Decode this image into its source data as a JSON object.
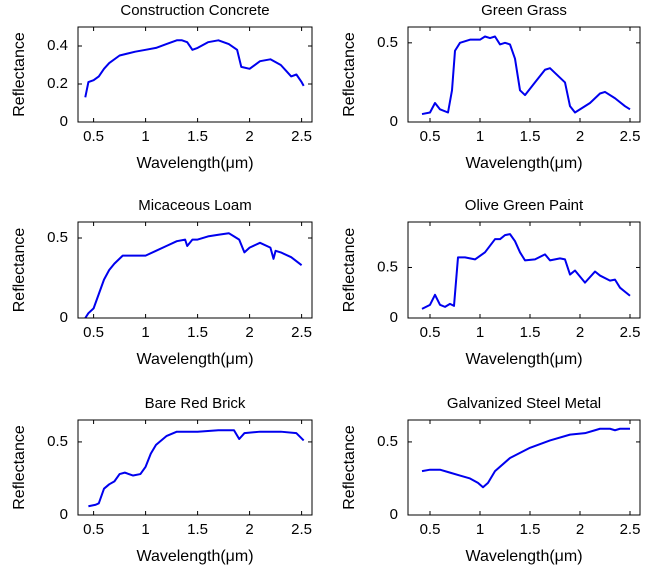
{
  "chart_data": [
    {
      "type": "line",
      "title": "Construction Concrete",
      "xlabel": "Wavelength(μm)",
      "ylabel": "Reflectance",
      "color": "#0000ee",
      "x": [
        0.42,
        0.45,
        0.5,
        0.55,
        0.6,
        0.65,
        0.75,
        0.9,
        1.0,
        1.1,
        1.2,
        1.3,
        1.35,
        1.4,
        1.45,
        1.5,
        1.6,
        1.7,
        1.8,
        1.88,
        1.92,
        2.0,
        2.1,
        2.2,
        2.3,
        2.35,
        2.4,
        2.45,
        2.5,
        2.52
      ],
      "values": [
        0.13,
        0.21,
        0.22,
        0.24,
        0.28,
        0.31,
        0.35,
        0.37,
        0.38,
        0.39,
        0.41,
        0.43,
        0.43,
        0.42,
        0.38,
        0.39,
        0.42,
        0.43,
        0.41,
        0.38,
        0.29,
        0.28,
        0.32,
        0.33,
        0.3,
        0.27,
        0.24,
        0.25,
        0.21,
        0.19
      ],
      "xlim": [
        0.35,
        2.6
      ],
      "ylim": [
        0,
        0.5
      ],
      "xticks": [
        0.5,
        1,
        1.5,
        2,
        2.5
      ],
      "yticks": [
        0,
        0.2,
        0.4
      ]
    },
    {
      "type": "line",
      "title": "Green Grass",
      "xlabel": "Wavelength(μm)",
      "ylabel": "Reflectance",
      "color": "#0000ee",
      "x": [
        0.42,
        0.5,
        0.55,
        0.6,
        0.68,
        0.72,
        0.75,
        0.8,
        0.9,
        1.0,
        1.05,
        1.1,
        1.15,
        1.2,
        1.25,
        1.3,
        1.35,
        1.4,
        1.45,
        1.55,
        1.65,
        1.7,
        1.8,
        1.85,
        1.9,
        1.95,
        2.1,
        2.2,
        2.25,
        2.35,
        2.45,
        2.5
      ],
      "values": [
        0.05,
        0.06,
        0.12,
        0.08,
        0.06,
        0.2,
        0.45,
        0.5,
        0.52,
        0.52,
        0.54,
        0.53,
        0.54,
        0.49,
        0.5,
        0.49,
        0.4,
        0.2,
        0.17,
        0.25,
        0.33,
        0.34,
        0.28,
        0.25,
        0.1,
        0.06,
        0.12,
        0.18,
        0.19,
        0.15,
        0.1,
        0.08
      ],
      "xlim": [
        0.28,
        2.6
      ],
      "ylim": [
        0,
        0.6
      ],
      "xticks": [
        0.5,
        1,
        1.5,
        2,
        2.5
      ],
      "yticks": [
        0,
        0.5
      ]
    },
    {
      "type": "line",
      "title": "Micaceous Loam",
      "xlabel": "Wavelength(μm)",
      "ylabel": "Reflectance",
      "color": "#0000ee",
      "x": [
        0.42,
        0.45,
        0.5,
        0.55,
        0.6,
        0.65,
        0.7,
        0.78,
        0.85,
        1.0,
        1.1,
        1.2,
        1.3,
        1.38,
        1.4,
        1.45,
        1.5,
        1.6,
        1.7,
        1.8,
        1.85,
        1.9,
        1.95,
        2.0,
        2.1,
        2.2,
        2.23,
        2.25,
        2.3,
        2.4,
        2.5
      ],
      "values": [
        0.0,
        0.03,
        0.06,
        0.15,
        0.24,
        0.3,
        0.34,
        0.39,
        0.39,
        0.39,
        0.42,
        0.45,
        0.48,
        0.49,
        0.45,
        0.49,
        0.49,
        0.51,
        0.52,
        0.53,
        0.51,
        0.49,
        0.41,
        0.44,
        0.47,
        0.44,
        0.37,
        0.42,
        0.41,
        0.38,
        0.33
      ],
      "xlim": [
        0.35,
        2.6
      ],
      "ylim": [
        0,
        0.6
      ],
      "xticks": [
        0.5,
        1,
        1.5,
        2,
        2.5
      ],
      "yticks": [
        0,
        0.5
      ]
    },
    {
      "type": "line",
      "title": "Olive Green Paint",
      "xlabel": "Wavelength(μm)",
      "ylabel": "Reflectance",
      "color": "#0000ee",
      "x": [
        0.42,
        0.5,
        0.55,
        0.6,
        0.65,
        0.7,
        0.74,
        0.78,
        0.85,
        0.95,
        1.05,
        1.15,
        1.2,
        1.25,
        1.3,
        1.35,
        1.4,
        1.45,
        1.55,
        1.65,
        1.7,
        1.8,
        1.85,
        1.9,
        1.95,
        2.05,
        2.15,
        2.2,
        2.3,
        2.35,
        2.4,
        2.45,
        2.5
      ],
      "values": [
        0.09,
        0.13,
        0.23,
        0.13,
        0.11,
        0.14,
        0.12,
        0.6,
        0.6,
        0.58,
        0.65,
        0.78,
        0.78,
        0.82,
        0.83,
        0.76,
        0.65,
        0.57,
        0.58,
        0.63,
        0.57,
        0.59,
        0.58,
        0.43,
        0.47,
        0.35,
        0.46,
        0.42,
        0.37,
        0.38,
        0.3,
        0.26,
        0.22
      ],
      "xlim": [
        0.28,
        2.6
      ],
      "ylim": [
        0,
        0.95
      ],
      "xticks": [
        0.5,
        1,
        1.5,
        2,
        2.5
      ],
      "yticks": [
        0,
        0.5
      ]
    },
    {
      "type": "line",
      "title": "Bare Red Brick",
      "xlabel": "Wavelength(μm)",
      "ylabel": "Reflectance",
      "color": "#0000ee",
      "x": [
        0.45,
        0.52,
        0.55,
        0.6,
        0.65,
        0.7,
        0.75,
        0.8,
        0.88,
        0.95,
        1.0,
        1.05,
        1.1,
        1.2,
        1.3,
        1.5,
        1.7,
        1.85,
        1.9,
        1.95,
        2.1,
        2.3,
        2.45,
        2.52
      ],
      "values": [
        0.06,
        0.07,
        0.08,
        0.18,
        0.21,
        0.23,
        0.28,
        0.29,
        0.27,
        0.28,
        0.33,
        0.42,
        0.48,
        0.54,
        0.57,
        0.57,
        0.58,
        0.58,
        0.52,
        0.56,
        0.57,
        0.57,
        0.56,
        0.51
      ],
      "xlim": [
        0.35,
        2.6
      ],
      "ylim": [
        0,
        0.65
      ],
      "xticks": [
        0.5,
        1,
        1.5,
        2,
        2.5
      ],
      "yticks": [
        0,
        0.5
      ]
    },
    {
      "type": "line",
      "title": "Galvanized Steel Metal",
      "xlabel": "Wavelength(μm)",
      "ylabel": "Reflectance",
      "color": "#0000ee",
      "x": [
        0.42,
        0.5,
        0.6,
        0.7,
        0.8,
        0.9,
        0.98,
        1.03,
        1.08,
        1.15,
        1.3,
        1.5,
        1.7,
        1.9,
        2.05,
        2.15,
        2.2,
        2.3,
        2.35,
        2.4,
        2.5
      ],
      "values": [
        0.3,
        0.31,
        0.31,
        0.29,
        0.27,
        0.25,
        0.22,
        0.19,
        0.22,
        0.3,
        0.39,
        0.46,
        0.51,
        0.55,
        0.56,
        0.58,
        0.59,
        0.59,
        0.58,
        0.59,
        0.59
      ],
      "xlim": [
        0.28,
        2.6
      ],
      "ylim": [
        0,
        0.65
      ],
      "xticks": [
        0.5,
        1,
        1.5,
        2,
        2.5
      ],
      "yticks": [
        0,
        0.5
      ]
    }
  ]
}
